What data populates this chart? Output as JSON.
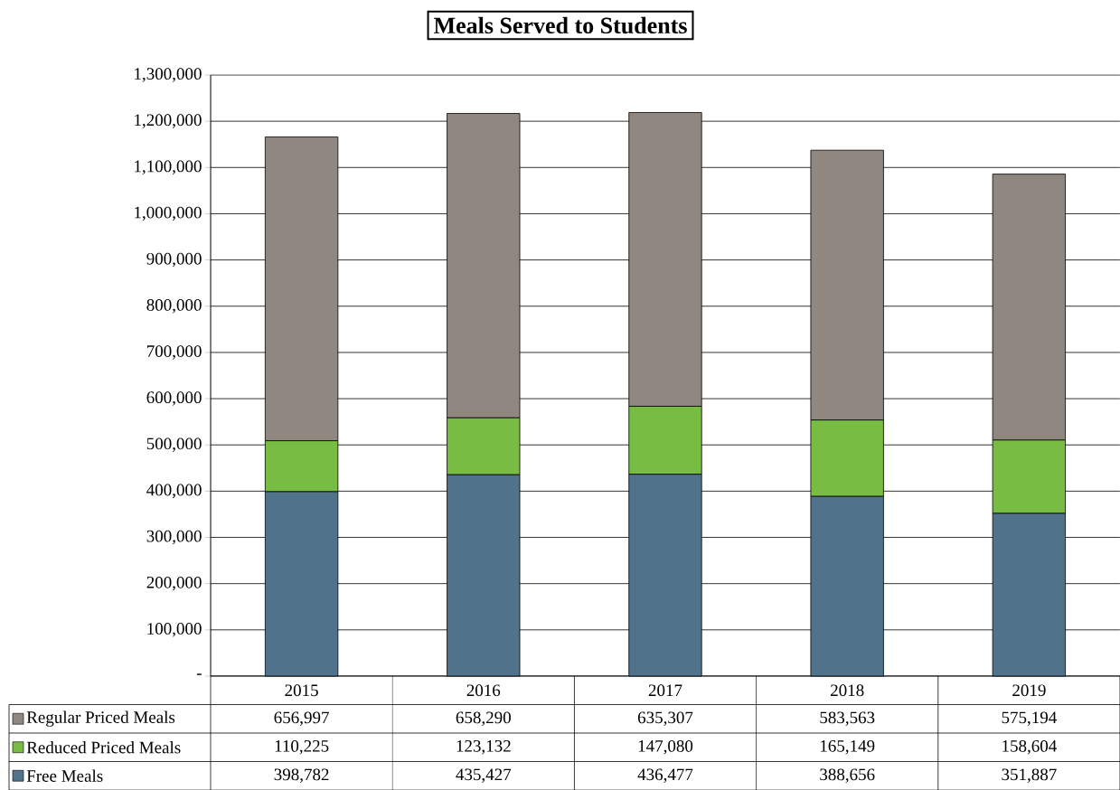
{
  "chart_data": {
    "type": "bar",
    "title": "Meals Served to Students",
    "categories": [
      "2015",
      "2016",
      "2017",
      "2018",
      "2019"
    ],
    "series": [
      {
        "name": "Free Meals",
        "color": "#50738b",
        "values": [
          398782,
          435427,
          436477,
          388656,
          351887
        ],
        "value_labels": [
          "398,782",
          "435,427",
          "436,477",
          "388,656",
          "351,887"
        ]
      },
      {
        "name": "Reduced Priced Meals",
        "color": "#79bc44",
        "values": [
          110225,
          123132,
          147080,
          165149,
          158604
        ],
        "value_labels": [
          "110,225",
          "123,132",
          "147,080",
          "165,149",
          "158,604"
        ]
      },
      {
        "name": "Regular Priced Meals",
        "color": "#8f8780",
        "values": [
          656997,
          658290,
          635307,
          583563,
          575194
        ],
        "value_labels": [
          "656,997",
          "658,290",
          "635,307",
          "583,563",
          "575,194"
        ]
      }
    ],
    "stacked": true,
    "grid": "y",
    "legend": "bottom",
    "ylim": [
      0,
      1300000
    ],
    "yticks": [
      {
        "value": 0,
        "label": "-"
      },
      {
        "value": 100000,
        "label": "100,000"
      },
      {
        "value": 200000,
        "label": "200,000"
      },
      {
        "value": 300000,
        "label": "300,000"
      },
      {
        "value": 400000,
        "label": "400,000"
      },
      {
        "value": 500000,
        "label": "500,000"
      },
      {
        "value": 600000,
        "label": "600,000"
      },
      {
        "value": 700000,
        "label": "700,000"
      },
      {
        "value": 800000,
        "label": "800,000"
      },
      {
        "value": 900000,
        "label": "900,000"
      },
      {
        "value": 1000000,
        "label": "1,000,000"
      },
      {
        "value": 1100000,
        "label": "1,100,000"
      },
      {
        "value": 1200000,
        "label": "1,200,000"
      },
      {
        "value": 1300000,
        "label": "1,300,000"
      }
    ]
  }
}
